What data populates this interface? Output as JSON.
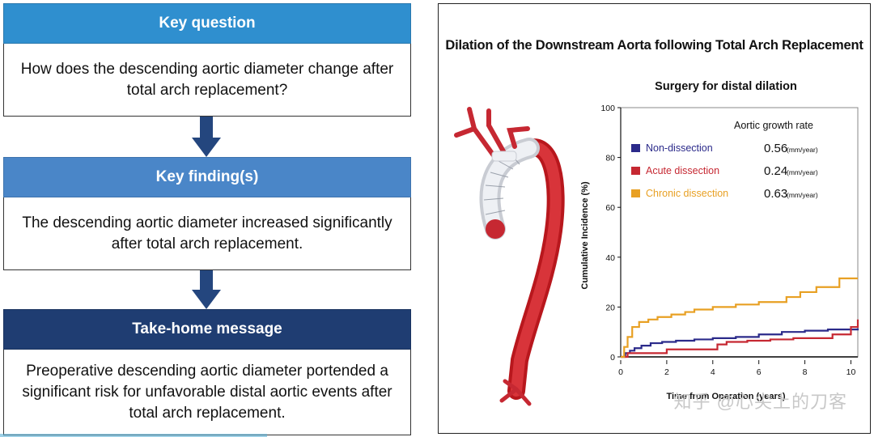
{
  "left_panel": {
    "q_header": "Key question",
    "q_body": "How does the descending aortic diameter change after total arch replacement?",
    "f_header": "Key finding(s)",
    "f_body": "The descending aortic diameter increased significantly after total arch replacement.",
    "m_header": "Take-home message",
    "m_body": "Preoperative descending aortic diameter portended a significant risk for unfavorable distal aortic events after total arch replacement.",
    "colors": {
      "q_header": "#2f8fcf",
      "f_header": "#4a86c8",
      "m_header": "#1f3d72",
      "arrow": "#24467e"
    }
  },
  "right_panel": {
    "title": "Dilation of the Downstream Aorta following Total Arch Replacement",
    "watermark": "知乎 @心尖上的刀客"
  },
  "chart_data": {
    "type": "line",
    "subtitle": "Surgery for distal dilation",
    "xlabel": "Time from Operation (years)",
    "ylabel": "Cumulative Incidence (%)",
    "xlim": [
      0,
      10.3
    ],
    "ylim": [
      0,
      100
    ],
    "xticks": [
      "0",
      "2",
      "4",
      "6",
      "8",
      "10"
    ],
    "yticks": [
      "0",
      "20",
      "40",
      "60",
      "80",
      "100"
    ],
    "legend_title": "Aortic growth rate",
    "unit": "(mm/year)",
    "series": [
      {
        "name": "Non-dissection",
        "rate": "0.56",
        "color": "#2b2a8a",
        "x": [
          0,
          0.2,
          0.4,
          0.6,
          0.9,
          1.3,
          1.8,
          2.4,
          3.2,
          4.0,
          5.0,
          6.0,
          7.0,
          8.0,
          9.0,
          10.3
        ],
        "y": [
          0,
          1.5,
          2.5,
          3.5,
          4.5,
          5.5,
          6.0,
          6.5,
          7.0,
          7.5,
          8.0,
          9.0,
          10.0,
          10.5,
          11.0,
          11.5
        ]
      },
      {
        "name": "Acute dissection",
        "rate": "0.24",
        "color": "#c62832",
        "x": [
          0,
          0.3,
          1.5,
          2.0,
          3.8,
          4.2,
          4.6,
          5.5,
          6.5,
          7.5,
          9.2,
          10.0,
          10.3
        ],
        "y": [
          0,
          1.5,
          1.5,
          3.0,
          3.0,
          5.0,
          6.0,
          6.5,
          7.0,
          7.5,
          9.0,
          12.0,
          15.0
        ]
      },
      {
        "name": "Chronic dissection",
        "rate": "0.63",
        "color": "#e8a023",
        "x": [
          0,
          0.15,
          0.3,
          0.5,
          0.8,
          1.2,
          1.6,
          2.2,
          2.8,
          3.2,
          4.0,
          5.0,
          6.0,
          7.2,
          7.8,
          8.5,
          9.5,
          10.3
        ],
        "y": [
          0,
          4,
          8,
          12,
          14,
          15,
          16,
          17,
          18,
          19,
          20,
          21,
          22,
          24,
          26,
          28,
          31.5,
          31.5
        ]
      }
    ]
  }
}
